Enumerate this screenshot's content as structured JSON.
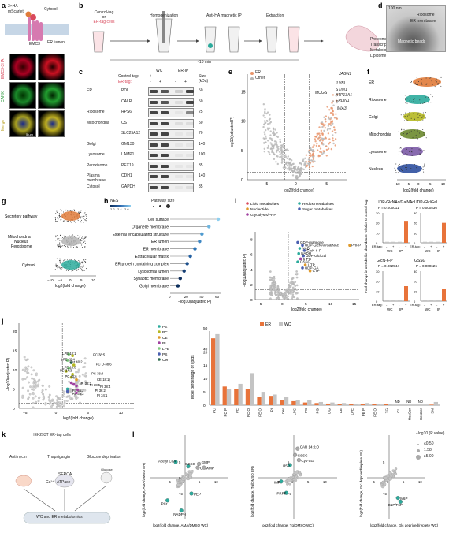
{
  "panel_letters": [
    "a",
    "b",
    "c",
    "d",
    "e",
    "f",
    "g",
    "h",
    "i",
    "j",
    "k",
    "l"
  ],
  "a": {
    "tag_top": "3×HA",
    "tag_mid": "mScarlet",
    "cytosol": "Cytosol",
    "protein": "EMC3",
    "lumen": "ER lumen",
    "row_labels": [
      "EMC3-3HA",
      "CANX",
      "Merge"
    ],
    "scale": "5 µm"
  },
  "b": {
    "start": "Control-tag\nor\nER-tag cells",
    "start_l1": "Control-tag",
    "start_l2": "or",
    "start_l3": "ER-tag cells",
    "steps": [
      "Homogenization",
      "Anti-HA magnetic IP",
      "Extraction"
    ],
    "time": "~10 min",
    "outputs": [
      "Proteome",
      "Transcriptome",
      "Metabolome",
      "Lipidome"
    ]
  },
  "c": {
    "headers": [
      "WC",
      "ER-IP"
    ],
    "ctrl_label": "Control-tag:",
    "er_label": "ER-tag:",
    "ctrl_signs": [
      "+",
      "-",
      "+",
      "-"
    ],
    "er_signs": [
      "-",
      "+",
      "-",
      "+"
    ],
    "size_label": "Size (kDa)",
    "rows": [
      {
        "group": "ER",
        "protein": "PDI",
        "size": "50"
      },
      {
        "group": "",
        "protein": "CALR",
        "size": "50"
      },
      {
        "group": "Ribosome",
        "protein": "RPS6",
        "size": "25"
      },
      {
        "group": "Mitochondria",
        "protein": "CS",
        "size": "50"
      },
      {
        "group": "",
        "protein": "SLC25A12",
        "size": "70"
      },
      {
        "group": "Golgi",
        "protein": "GM130",
        "size": "140"
      },
      {
        "group": "Lysosome",
        "protein": "LAMP1",
        "size": "100"
      },
      {
        "group": "Peroxisome",
        "protein": "PEX19",
        "size": "35"
      },
      {
        "group": "Plasma membrane",
        "protein": "CDH1",
        "size": "140"
      },
      {
        "group": "Cytosol",
        "protein": "GAPDH",
        "size": "35"
      }
    ]
  },
  "d": {
    "scale": "100 nm",
    "labels": [
      "Ribosome",
      "ER membrane",
      "Magnetic beads"
    ]
  },
  "e": {
    "legend": [
      {
        "name": "ER",
        "color": "#e8956b"
      },
      {
        "name": "Other",
        "color": "#b5b5b5"
      }
    ],
    "xlabel": "log2(fold change)",
    "ylabel": "−log10(adjusted P)",
    "xticks": [
      "−5",
      "0",
      "5"
    ],
    "yticks": [
      "0",
      "5",
      "10",
      "15"
    ],
    "genes": [
      "JAGN1",
      "ILVBL",
      "STIM1",
      "ATP13A1",
      "ERLIN1",
      "MOGS",
      "MIA3"
    ]
  },
  "f": {
    "categories": [
      "ER",
      "Ribosome",
      "Golgi",
      "Mitochondria",
      "Lysosome",
      "Nucleus"
    ],
    "colors": [
      "#e07b3a",
      "#2cab9c",
      "#b5b822",
      "#6b8a2e",
      "#7b5aa6",
      "#2e4f9e"
    ],
    "xlabel": "log2(fold change)",
    "xticks": [
      "−10",
      "−5",
      "0",
      "5",
      "10"
    ]
  },
  "g": {
    "categories": [
      "Secretory pathway",
      "Mitochondria",
      "Nucleus",
      "Peroxisome",
      "Cytosol"
    ],
    "xlabel": "log2(fold change)",
    "xticks": [
      "−10",
      "−5",
      "0",
      "5",
      "10"
    ]
  },
  "h": {
    "legend_nes": "NES",
    "nes_ticks": [
      "2.2",
      "2.4",
      "2.6"
    ],
    "legend_size": "Pathway size",
    "size_ticks": [
      "100",
      "200",
      "300"
    ],
    "terms": [
      "Cell surface",
      "Organelle membrane",
      "External encapsulating structure",
      "ER lumen",
      "ER membrane",
      "Extracellular matrix",
      "ER protein containing complex",
      "Lysosomal lumen",
      "Synaptic membrane",
      "Golgi membrane"
    ],
    "values": [
      62,
      50,
      41,
      38,
      32,
      26,
      22,
      18,
      13,
      10
    ],
    "xlabel": "−log10(adjusted P)",
    "xticks": [
      "0",
      "20",
      "40",
      "60"
    ]
  },
  "i": {
    "legend": [
      {
        "name": "Lipid metabolites",
        "color": "#d9495c"
      },
      {
        "name": "Redox metabolites",
        "color": "#2cab9c"
      },
      {
        "name": "Nucleotide",
        "color": "#e09a2b"
      },
      {
        "name": "Sugar metabolites",
        "color": "#4a5fb0"
      },
      {
        "name": "Glycolysis/PPP",
        "color": "#a040a0"
      }
    ],
    "labels": [
      "GDP-mannose",
      "UDP-GlcNAc/GalNAc",
      "NAD",
      "GlcN-6-P",
      "NADH",
      "UDP-Glc/Gal",
      "6-PG",
      "GSSG",
      "UTP",
      "UDP-GA",
      "CTP",
      "PRPP"
    ],
    "xlabel": "log2(fold change)",
    "ylabel": "−log10(adjusted P)",
    "xticks": [
      "−5",
      "0",
      "5",
      "10",
      "15"
    ],
    "yticks": [
      "0",
      "2",
      "4",
      "6",
      "8"
    ],
    "bars": [
      {
        "title": "UDP-GlcNAc/GalNAc",
        "p": "P = 0.000011",
        "ymax": "30",
        "yticks": [
          "0",
          "10",
          "20",
          "30"
        ],
        "values": [
          1,
          1,
          1,
          22
        ]
      },
      {
        "title": "UDP-Glc/Gal",
        "p": "P = 0.000536",
        "ymax": "30",
        "yticks": [
          "0",
          "10",
          "20",
          "30"
        ],
        "values": [
          1,
          1,
          1,
          20
        ]
      },
      {
        "title": "GlcN-6-P",
        "p": "P = 0.002544",
        "ymax": "30",
        "yticks": [
          "0",
          "10",
          "20",
          "30"
        ],
        "values": [
          1,
          1,
          1,
          15
        ]
      },
      {
        "title": "GSSG",
        "p": "P = 0.000626",
        "ymax": "30",
        "yticks": [
          "0",
          "10",
          "20",
          "30"
        ],
        "values": [
          1,
          1,
          1,
          12
        ]
      }
    ],
    "bar_ylabel": "Fold change in metabolite abundance relative to control-tag",
    "er_tag": "ER-tag:",
    "signs": [
      "-",
      "+",
      "-",
      "+"
    ],
    "groups": [
      "WC",
      "IP"
    ]
  },
  "j": {
    "legend": [
      {
        "name": "PE",
        "color": "#2cab9c"
      },
      {
        "name": "PC",
        "color": "#b5b822"
      },
      {
        "name": "CE",
        "color": "#e09a2b"
      },
      {
        "name": "PI",
        "color": "#a040a0"
      },
      {
        "name": "LPE",
        "color": "#7fc97f"
      },
      {
        "name": "PS",
        "color": "#4a5fb0"
      },
      {
        "name": "Cer",
        "color": "#2e6b4f"
      }
    ],
    "labels": [
      "LPE 18:1",
      "PC 38:5",
      "LPE 20:4",
      "Cer 40:2",
      "PC O-38:6",
      "LPE 18:0",
      "PC 34:3",
      "PC 38:4",
      "PC 40:6",
      "CE(18:1)",
      "PI 38:3",
      "PI 38:5",
      "PI 38:4",
      "PE 36:2",
      "PS 38:2",
      "PI 36:2",
      "PI 34:1"
    ],
    "xlabel": "log2(fold change)",
    "ylabel": "−log10(adjusted P)",
    "xticks": [
      "−5",
      "0",
      "5",
      "10"
    ],
    "yticks": [
      "0",
      "5",
      "10",
      "15",
      "20"
    ],
    "bar_legend": [
      {
        "name": "ER",
        "color": "#e8733a"
      },
      {
        "name": "WC",
        "color": "#c4c4c4"
      }
    ],
    "bar_ylabel": "Mole percentage of lipids",
    "bar_yticks": [
      "0",
      "5",
      "10",
      "15",
      "20",
      "40",
      "50"
    ],
    "categories": [
      "PC",
      "PC P",
      "PE",
      "PC O",
      "PE O",
      "PI",
      "Cer",
      "LPC",
      "PS",
      "PG",
      "DG",
      "CE",
      "LPE",
      "PE P",
      "PE O",
      "TG",
      "CL",
      "HexCer",
      "HexCer",
      "SM"
    ],
    "er_values": [
      45,
      7,
      6,
      6,
      3,
      3.5,
      2,
      1.5,
      1,
      0.8,
      0.6,
      0.5,
      0.4,
      0.4,
      0.3,
      0.3,
      0,
      0,
      0,
      0.2
    ],
    "wc_values": [
      47,
      6,
      8,
      12,
      5,
      4,
      3,
      2,
      2,
      1.2,
      1,
      0.8,
      0.6,
      0.8,
      0.6,
      0.4,
      0,
      0,
      0,
      1.2
    ],
    "nd": "ND"
  },
  "k": {
    "cells": "HEK293T ER-tag cells",
    "drugs": [
      "Antimycin",
      "Thapsigargin",
      "Glucose deprivation"
    ],
    "serca": "SERCA",
    "atpase": "ATPase",
    "ca": "Ca²⁺",
    "glucose": "Glucose",
    "outcome": "WC and ER metabolomics"
  },
  "l": {
    "plots": [
      {
        "xlabel": "log2(fold change, AMA/DMSO WC)",
        "ylabel": "log2(fold change, AMA/DMSO ER)",
        "labels": [
          "Acetyl CoA",
          "GSSG",
          "GMP",
          "CMP",
          "AMP",
          "PEP",
          "PCr",
          "NADPH"
        ],
        "xticks": [
          "−5",
          "0",
          "5",
          "10"
        ],
        "yticks": [
          "−5",
          "0",
          "5"
        ]
      },
      {
        "xlabel": "log2(fold change, Tg/DMSO WC)",
        "ylabel": "log2(fold change, Tg/DMSO ER)",
        "labels": [
          "CAR 14:0;O",
          "GSSG",
          "Cys-SG",
          "R5P",
          "IMP",
          "PRPP"
        ],
        "xticks": [
          "−5",
          "0",
          "5",
          "10"
        ],
        "yticks": [
          "−5",
          "0",
          "5"
        ]
      },
      {
        "xlabel": "log2(fold change, Glc deprived/replete WC)",
        "ylabel": "log2(fold change, Glc deprived/replete ER)",
        "labels": [
          "M6P",
          "G1P/F6P"
        ],
        "xticks": [
          "−5",
          "0",
          "5",
          "10"
        ],
        "yticks": [
          "−5",
          "0",
          "5"
        ]
      }
    ],
    "legend_title": "−log10 (P value)",
    "legend_values": [
      "≤0.50",
      "1.58",
      "≥5.00"
    ]
  }
}
